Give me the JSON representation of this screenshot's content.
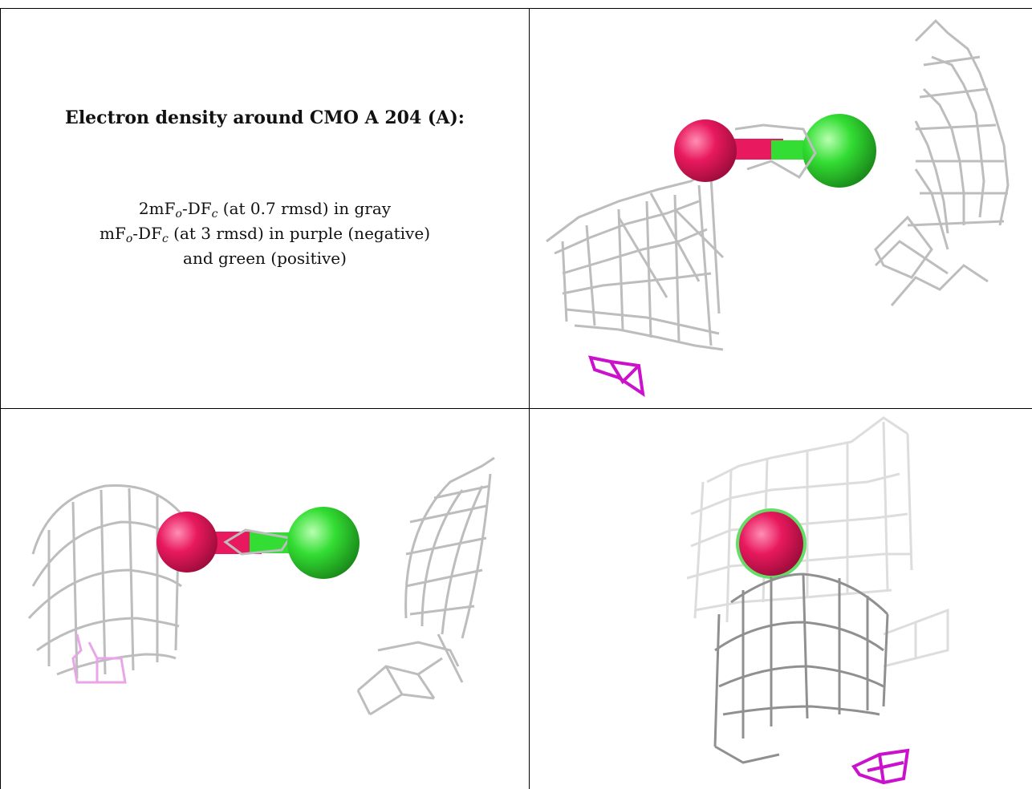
{
  "caption": {
    "title": "Electron density around CMO A 204 (A):",
    "line1": {
      "pre": "2mF",
      "sub1": "o",
      "mid": "-DF",
      "sub2": "c",
      "post": " (at 0.7 rmsd) in gray"
    },
    "line2": {
      "pre": "mF",
      "sub1": "o",
      "mid": "-DF",
      "sub2": "c",
      "post": " (at 3 rmsd) in purple (negative)"
    },
    "line3": "and green (positive)"
  },
  "colors": {
    "mesh_gray": "#b9b9b9",
    "mesh_dark": "#8a8a8a",
    "negative_purple": "#cc11cc",
    "negative_light": "#e8a6e8",
    "oxygen": "#e8195e",
    "carbon": "#33dd33"
  }
}
